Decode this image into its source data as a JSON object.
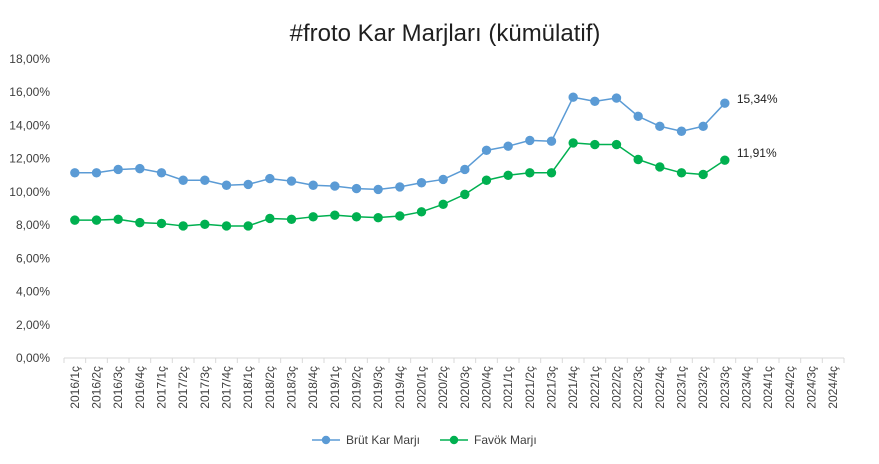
{
  "chart_data": {
    "type": "line",
    "title": "#froto Kar Marjları (kümülatif)",
    "xlabel": "",
    "ylabel": "",
    "ylim": [
      0,
      18
    ],
    "y_ticks": [
      "0,00%",
      "2,00%",
      "4,00%",
      "6,00%",
      "8,00%",
      "10,00%",
      "12,00%",
      "14,00%",
      "16,00%",
      "18,00%"
    ],
    "grid": false,
    "legend_position": "bottom",
    "categories": [
      "2016/1ç",
      "2016/2ç",
      "2016/3ç",
      "2016/4ç",
      "2017/1ç",
      "2017/2ç",
      "2017/3ç",
      "2017/4ç",
      "2018/1ç",
      "2018/2ç",
      "2018/3ç",
      "2018/4ç",
      "2019/1ç",
      "2019/2ç",
      "2019/3ç",
      "2019/4ç",
      "2020/1ç",
      "2020/2ç",
      "2020/3ç",
      "2020/4ç",
      "2021/1ç",
      "2021/2ç",
      "2021/3ç",
      "2021/4ç",
      "2022/1ç",
      "2022/2ç",
      "2022/3ç",
      "2022/4ç",
      "2023/1ç",
      "2023/2ç",
      "2023/3ç",
      "2023/4ç",
      "2024/1ç",
      "2024/2ç",
      "2024/3ç",
      "2024/4ç"
    ],
    "series": [
      {
        "name": "Brüt Kar Marjı",
        "color": "#5b9bd5",
        "values": [
          11.15,
          11.15,
          11.35,
          11.4,
          11.15,
          10.7,
          10.7,
          10.4,
          10.45,
          10.8,
          10.65,
          10.4,
          10.35,
          10.2,
          10.15,
          10.3,
          10.55,
          10.75,
          11.35,
          12.5,
          12.75,
          13.1,
          13.05,
          15.7,
          15.45,
          15.65,
          14.55,
          13.95,
          13.65,
          13.95,
          15.34,
          null,
          null,
          null,
          null,
          null
        ],
        "end_label": "15,34%"
      },
      {
        "name": "Favök Marjı",
        "color": "#00b050",
        "values": [
          8.3,
          8.3,
          8.35,
          8.15,
          8.1,
          7.95,
          8.05,
          7.95,
          7.95,
          8.4,
          8.35,
          8.5,
          8.6,
          8.5,
          8.45,
          8.55,
          8.8,
          9.25,
          9.85,
          10.7,
          11.0,
          11.15,
          11.15,
          12.95,
          12.85,
          12.85,
          11.95,
          11.5,
          11.15,
          11.05,
          11.91,
          null,
          null,
          null,
          null,
          null
        ],
        "end_label": "11,91%"
      }
    ]
  }
}
